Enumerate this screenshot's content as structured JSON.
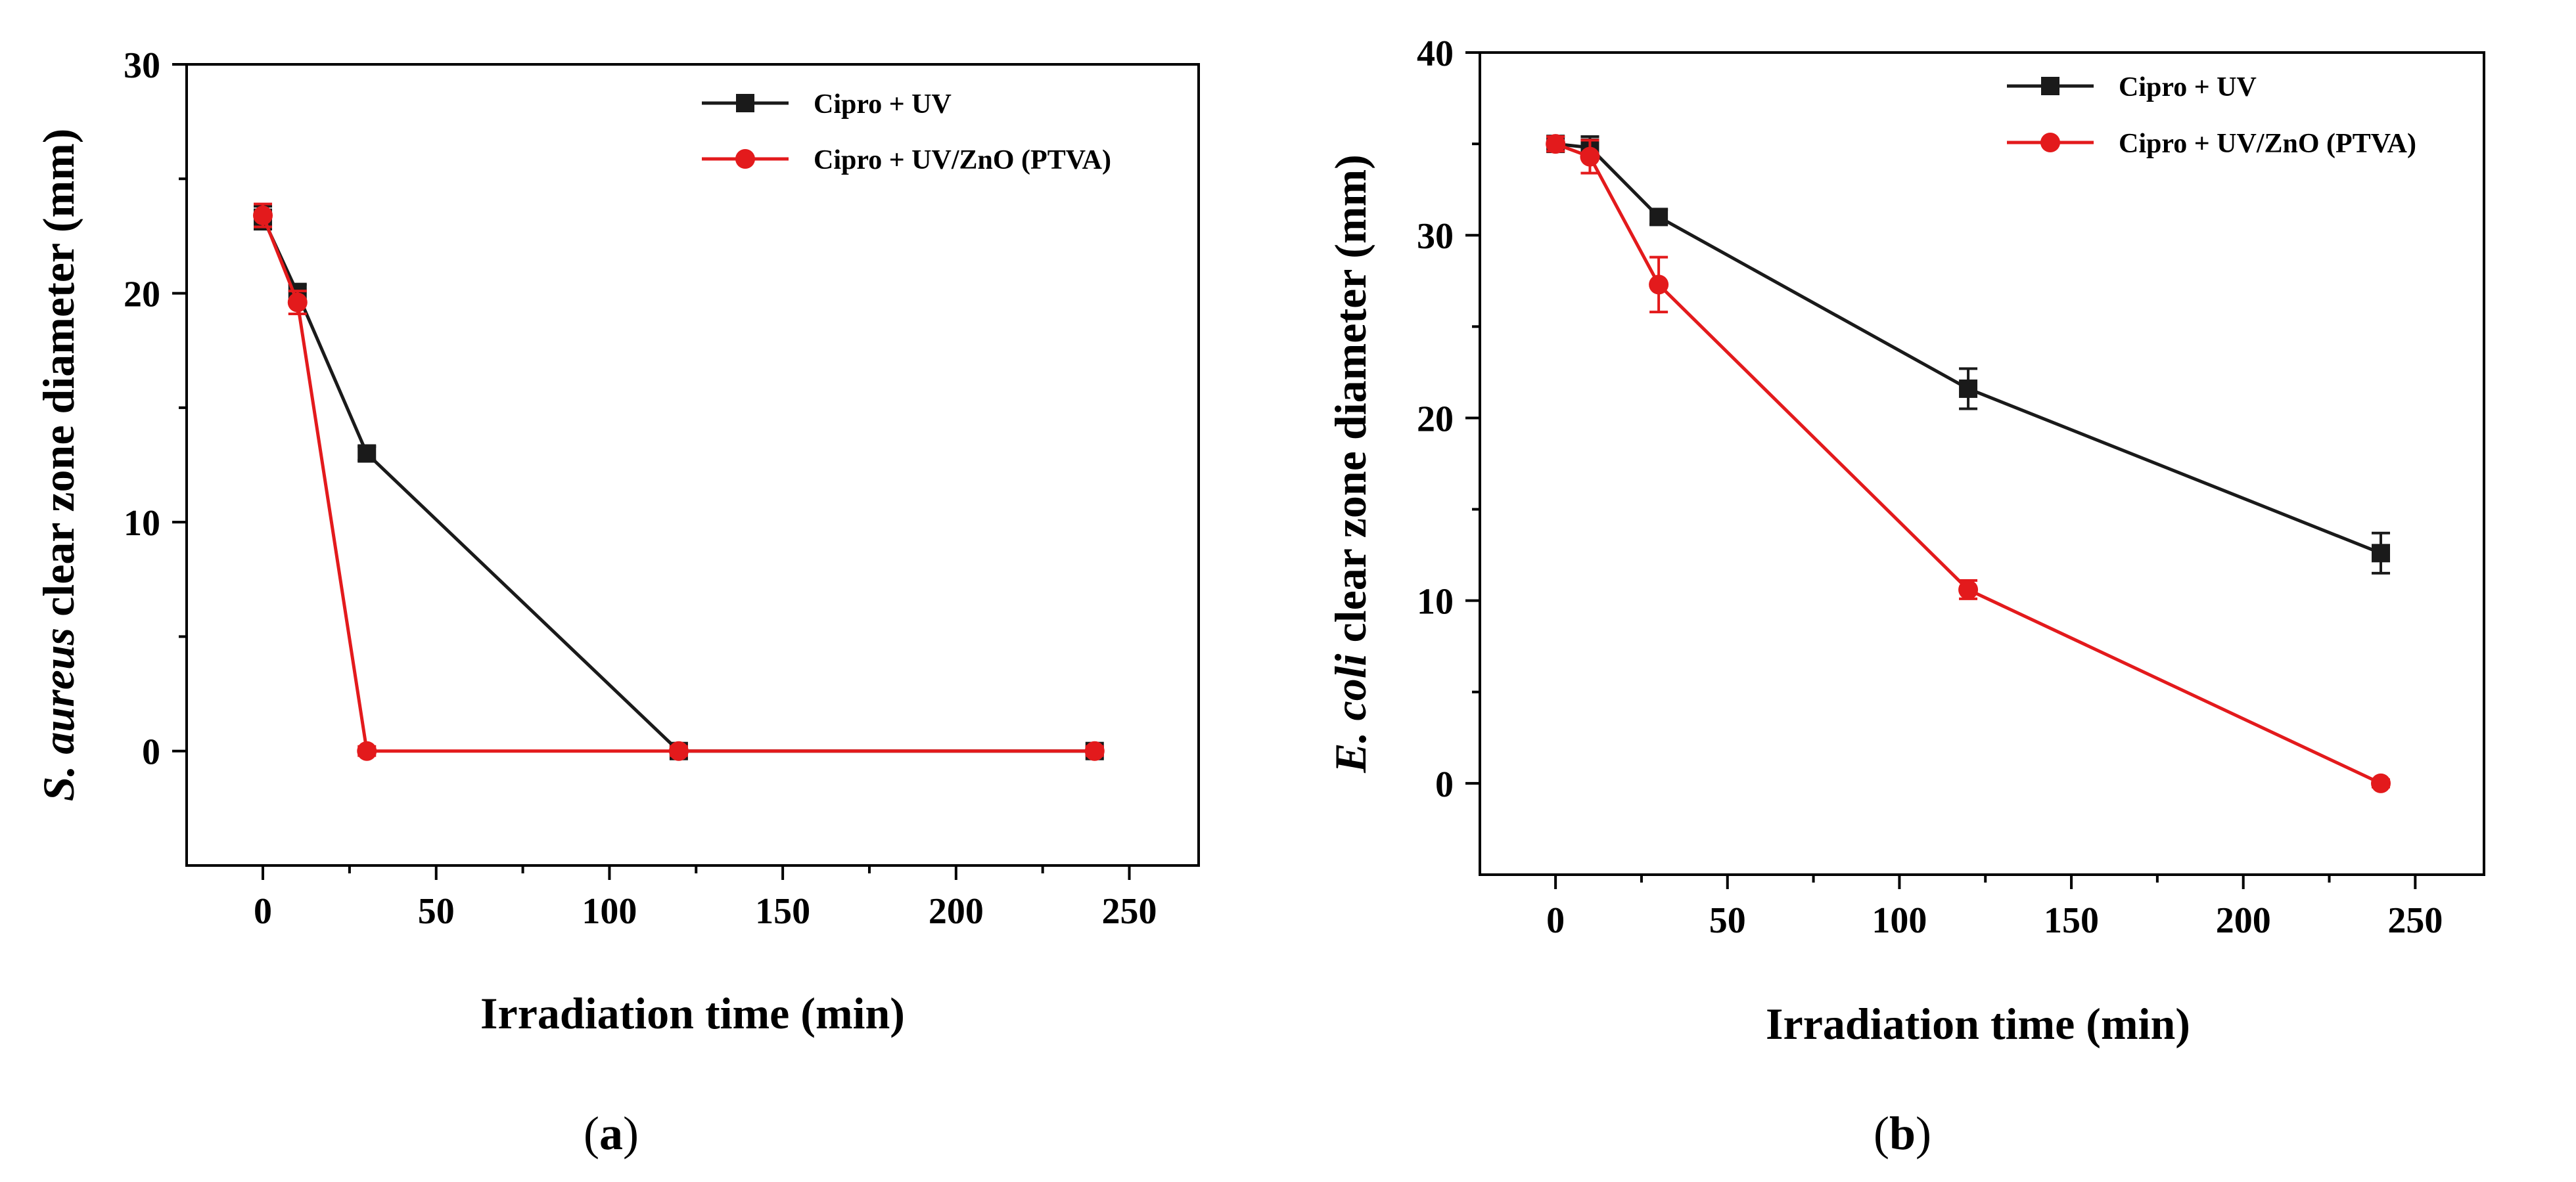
{
  "chart_data": [
    {
      "type": "line",
      "panel_label": [
        "(",
        "a",
        ")"
      ],
      "xlabel": "Irradiation time (min)",
      "ylabel_italic": "S. aureus",
      "ylabel_rest": " clear zone diameter (mm)",
      "xlim": [
        -22,
        270
      ],
      "ylim": [
        -5,
        30
      ],
      "xticks": [
        0,
        50,
        100,
        150,
        200,
        250
      ],
      "yticks": [
        0,
        10,
        20,
        30
      ],
      "legend_position": "top-right",
      "series": [
        {
          "name": "Cipro + UV",
          "color": "#1a1a1a",
          "marker": "square",
          "x": [
            0,
            10,
            30,
            120,
            240
          ],
          "y": [
            23.3,
            20.0,
            13.0,
            0,
            0
          ],
          "err": [
            0.5,
            0.4,
            0.3,
            0.2,
            0.2
          ]
        },
        {
          "name": "Cipro + UV/ZnO (PTVA)",
          "color": "#e31a1c",
          "marker": "circle",
          "x": [
            0,
            10,
            30,
            120,
            240
          ],
          "y": [
            23.4,
            19.6,
            0,
            0,
            0
          ],
          "err": [
            0.5,
            0.5,
            0.2,
            0.2,
            0.2
          ]
        }
      ]
    },
    {
      "type": "line",
      "panel_label": [
        "(",
        "b",
        ")"
      ],
      "xlabel": "Irradiation time (min)",
      "ylabel_italic": "E. coli",
      "ylabel_rest": " clear zone diameter (mm)",
      "xlim": [
        -22,
        270
      ],
      "ylim": [
        -5,
        40
      ],
      "xticks": [
        0,
        50,
        100,
        150,
        200,
        250
      ],
      "yticks": [
        0,
        10,
        20,
        30,
        40
      ],
      "legend_position": "top-right",
      "series": [
        {
          "name": "Cipro + UV",
          "color": "#1a1a1a",
          "marker": "square",
          "x": [
            0,
            10,
            30,
            120,
            240
          ],
          "y": [
            35.0,
            34.8,
            31.0,
            21.6,
            12.6
          ],
          "err": [
            0.4,
            0.6,
            0.4,
            1.1,
            1.1
          ]
        },
        {
          "name": "Cipro + UV/ZnO (PTVA)",
          "color": "#e31a1c",
          "marker": "circle",
          "x": [
            0,
            10,
            30,
            120,
            240
          ],
          "y": [
            35.0,
            34.3,
            27.3,
            10.6,
            0
          ],
          "err": [
            0.4,
            0.9,
            1.5,
            0.5,
            0.2
          ]
        }
      ]
    }
  ]
}
